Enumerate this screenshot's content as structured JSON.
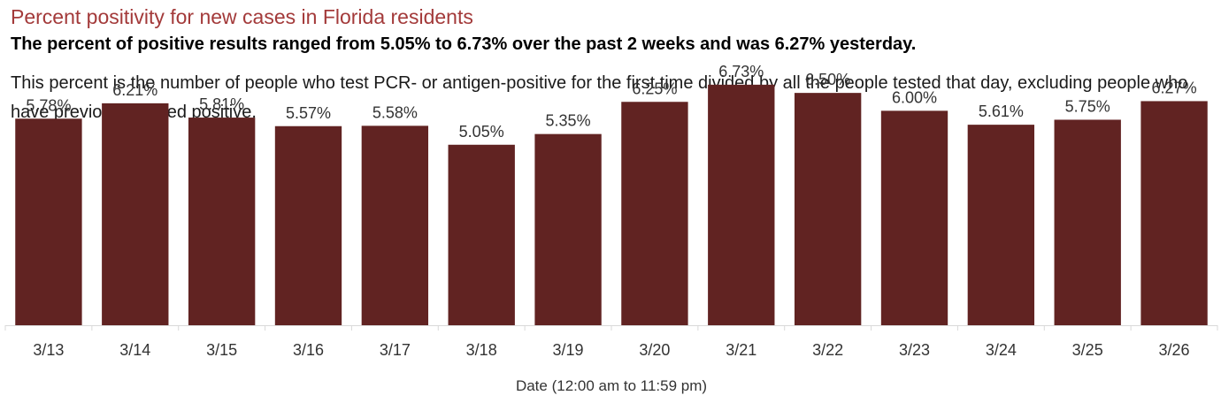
{
  "header": {
    "title": "Percent positivity for new cases in Florida residents",
    "subtitle": "The percent of positive results ranged from 5.05% to 6.73% over the past 2 weeks and was 6.27% yesterday.",
    "note": "This percent is the number of people who test PCR- or antigen-positive for the first time divided by all the people tested that day, excluding people who have previously tested positive."
  },
  "chart_data": {
    "type": "bar",
    "title": "Percent positivity for new cases in Florida residents",
    "xlabel": "Date (12:00 am to 11:59 pm)",
    "ylabel": "",
    "categories": [
      "3/13",
      "3/14",
      "3/15",
      "3/16",
      "3/17",
      "3/18",
      "3/19",
      "3/20",
      "3/21",
      "3/22",
      "3/23",
      "3/24",
      "3/25",
      "3/26"
    ],
    "values": [
      5.78,
      6.21,
      5.81,
      5.57,
      5.58,
      5.05,
      5.35,
      6.25,
      6.73,
      6.5,
      6.0,
      5.61,
      5.75,
      6.27
    ],
    "data_labels": [
      "5.78%",
      "6.21%",
      "5.81%",
      "5.57%",
      "5.58%",
      "5.05%",
      "5.35%",
      "6.25%",
      "6.73%",
      "6.50%",
      "6.00%",
      "5.61%",
      "5.75%",
      "6.27%"
    ],
    "ylim": [
      0,
      9.1
    ],
    "grid": false,
    "bar_color": "#612322",
    "axis_color": "#d9d9d9"
  }
}
